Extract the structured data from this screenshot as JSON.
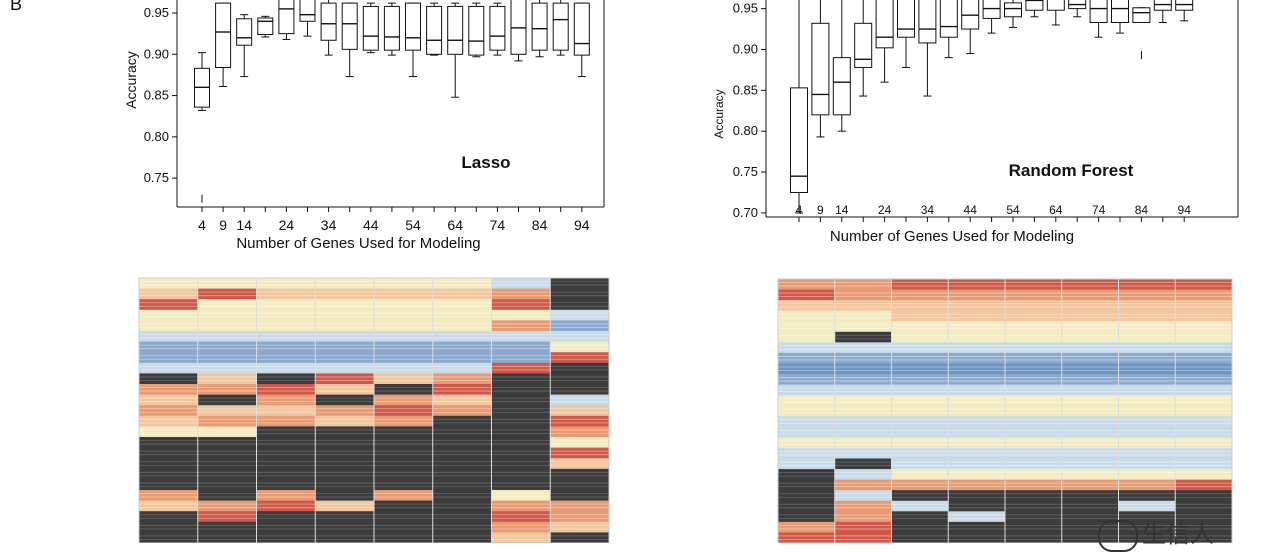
{
  "panel_label": "B",
  "watermark_text": "生信人",
  "chart_data": [
    {
      "type": "box",
      "annotation": "Lasso",
      "xlabel": "Number of Genes Used for Modeling",
      "ylabel": "Accuracy",
      "ylim": [
        0.715,
        0.99
      ],
      "yticks": [
        0.75,
        0.8,
        0.85,
        0.9,
        0.95
      ],
      "x_tick_labels": [
        "4",
        "9",
        "14",
        "24",
        "34",
        "44",
        "54",
        "64",
        "74",
        "84",
        "94"
      ],
      "categories": [
        "4",
        "9",
        "14",
        "19",
        "24",
        "29",
        "34",
        "39",
        "44",
        "49",
        "54",
        "59",
        "64",
        "69",
        "74",
        "79",
        "84",
        "89",
        "94"
      ],
      "boxes": [
        {
          "x": "4",
          "whislo": 0.832,
          "q1": 0.836,
          "med": 0.86,
          "q3": 0.883,
          "whishi": 0.902,
          "outliers": [
            0.725
          ]
        },
        {
          "x": "9",
          "whislo": 0.861,
          "q1": 0.884,
          "med": 0.927,
          "q3": 0.962,
          "whishi": 0.962,
          "outliers": []
        },
        {
          "x": "14",
          "whislo": 0.873,
          "q1": 0.911,
          "med": 0.92,
          "q3": 0.943,
          "whishi": 0.948,
          "outliers": []
        },
        {
          "x": "19",
          "whislo": 0.921,
          "q1": 0.924,
          "med": 0.94,
          "q3": 0.944,
          "whishi": 0.946,
          "outliers": []
        },
        {
          "x": "24",
          "whislo": 0.918,
          "q1": 0.925,
          "med": 0.955,
          "q3": 0.985,
          "whishi": 0.985,
          "outliers": []
        },
        {
          "x": "29",
          "whislo": 0.922,
          "q1": 0.94,
          "med": 0.948,
          "q3": 0.985,
          "whishi": 0.985,
          "outliers": []
        },
        {
          "x": "34",
          "whislo": 0.899,
          "q1": 0.917,
          "med": 0.937,
          "q3": 0.962,
          "whishi": 0.985,
          "outliers": []
        },
        {
          "x": "39",
          "whislo": 0.873,
          "q1": 0.906,
          "med": 0.937,
          "q3": 0.962,
          "whishi": 0.962,
          "outliers": []
        },
        {
          "x": "44",
          "whislo": 0.902,
          "q1": 0.905,
          "med": 0.922,
          "q3": 0.958,
          "whishi": 0.962,
          "outliers": []
        },
        {
          "x": "49",
          "whislo": 0.899,
          "q1": 0.905,
          "med": 0.921,
          "q3": 0.958,
          "whishi": 0.962,
          "outliers": []
        },
        {
          "x": "54",
          "whislo": 0.873,
          "q1": 0.905,
          "med": 0.92,
          "q3": 0.962,
          "whishi": 0.962,
          "outliers": []
        },
        {
          "x": "59",
          "whislo": 0.899,
          "q1": 0.9,
          "med": 0.917,
          "q3": 0.958,
          "whishi": 0.962,
          "outliers": []
        },
        {
          "x": "64",
          "whislo": 0.848,
          "q1": 0.9,
          "med": 0.917,
          "q3": 0.958,
          "whishi": 0.962,
          "outliers": []
        },
        {
          "x": "69",
          "whislo": 0.897,
          "q1": 0.899,
          "med": 0.916,
          "q3": 0.958,
          "whishi": 0.962,
          "outliers": []
        },
        {
          "x": "74",
          "whislo": 0.899,
          "q1": 0.905,
          "med": 0.922,
          "q3": 0.958,
          "whishi": 0.962,
          "outliers": []
        },
        {
          "x": "79",
          "whislo": 0.892,
          "q1": 0.9,
          "med": 0.932,
          "q3": 0.985,
          "whishi": 0.985,
          "outliers": []
        },
        {
          "x": "84",
          "whislo": 0.897,
          "q1": 0.905,
          "med": 0.931,
          "q3": 0.962,
          "whishi": 0.985,
          "outliers": []
        },
        {
          "x": "89",
          "whislo": 0.899,
          "q1": 0.905,
          "med": 0.942,
          "q3": 0.962,
          "whishi": 0.985,
          "outliers": []
        },
        {
          "x": "94",
          "whislo": 0.873,
          "q1": 0.899,
          "med": 0.913,
          "q3": 0.962,
          "whishi": 0.962,
          "outliers": []
        }
      ]
    },
    {
      "type": "box",
      "annotation": "Random Forest",
      "xlabel": "Number of Genes Used for Modeling",
      "ylabel": "Accuracy",
      "ylim": [
        0.695,
        0.985
      ],
      "yticks": [
        0.7,
        0.75,
        0.8,
        0.85,
        0.9,
        0.95
      ],
      "x_tick_labels": [
        "4",
        "9",
        "14",
        "24",
        "34",
        "44",
        "54",
        "64",
        "74",
        "84",
        "94"
      ],
      "categories": [
        "4",
        "9",
        "14",
        "19",
        "24",
        "29",
        "34",
        "39",
        "44",
        "49",
        "54",
        "59",
        "64",
        "69",
        "74",
        "79",
        "84",
        "89",
        "94"
      ],
      "boxes": [
        {
          "x": "4",
          "whislo": 0.7,
          "q1": 0.725,
          "med": 0.745,
          "q3": 0.853,
          "whishi": 0.985,
          "outliers": []
        },
        {
          "x": "9",
          "whislo": 0.793,
          "q1": 0.82,
          "med": 0.845,
          "q3": 0.932,
          "whishi": 0.985,
          "outliers": []
        },
        {
          "x": "14",
          "whislo": 0.8,
          "q1": 0.82,
          "med": 0.86,
          "q3": 0.89,
          "whishi": 0.985,
          "outliers": []
        },
        {
          "x": "19",
          "whislo": 0.843,
          "q1": 0.878,
          "med": 0.888,
          "q3": 0.932,
          "whishi": 0.985,
          "outliers": []
        },
        {
          "x": "24",
          "whislo": 0.86,
          "q1": 0.902,
          "med": 0.915,
          "q3": 0.975,
          "whishi": 0.985,
          "outliers": []
        },
        {
          "x": "29",
          "whislo": 0.878,
          "q1": 0.915,
          "med": 0.925,
          "q3": 0.975,
          "whishi": 0.985,
          "outliers": []
        },
        {
          "x": "34",
          "whislo": 0.843,
          "q1": 0.908,
          "med": 0.925,
          "q3": 0.975,
          "whishi": 0.985,
          "outliers": []
        },
        {
          "x": "39",
          "whislo": 0.89,
          "q1": 0.915,
          "med": 0.928,
          "q3": 0.97,
          "whishi": 0.985,
          "outliers": []
        },
        {
          "x": "44",
          "whislo": 0.895,
          "q1": 0.925,
          "med": 0.942,
          "q3": 0.967,
          "whishi": 0.985,
          "outliers": []
        },
        {
          "x": "49",
          "whislo": 0.92,
          "q1": 0.938,
          "med": 0.95,
          "q3": 0.967,
          "whishi": 0.985,
          "outliers": []
        },
        {
          "x": "54",
          "whislo": 0.927,
          "q1": 0.94,
          "med": 0.95,
          "q3": 0.957,
          "whishi": 0.962,
          "outliers": []
        },
        {
          "x": "59",
          "whislo": 0.94,
          "q1": 0.948,
          "med": 0.96,
          "q3": 0.977,
          "whishi": 0.985,
          "outliers": []
        },
        {
          "x": "64",
          "whislo": 0.93,
          "q1": 0.948,
          "med": 0.962,
          "q3": 0.977,
          "whishi": 0.985,
          "outliers": []
        },
        {
          "x": "69",
          "whislo": 0.94,
          "q1": 0.95,
          "med": 0.955,
          "q3": 0.965,
          "whishi": 0.985,
          "outliers": []
        },
        {
          "x": "74",
          "whislo": 0.915,
          "q1": 0.933,
          "med": 0.95,
          "q3": 0.98,
          "whishi": 0.985,
          "outliers": []
        },
        {
          "x": "79",
          "whislo": 0.92,
          "q1": 0.933,
          "med": 0.95,
          "q3": 0.98,
          "whishi": 0.985,
          "outliers": []
        },
        {
          "x": "84",
          "whislo": 0.933,
          "q1": 0.933,
          "med": 0.945,
          "q3": 0.951,
          "whishi": 0.951,
          "outliers": [
            0.893
          ]
        },
        {
          "x": "89",
          "whislo": 0.933,
          "q1": 0.948,
          "med": 0.955,
          "q3": 0.967,
          "whishi": 0.985,
          "outliers": []
        },
        {
          "x": "94",
          "whislo": 0.935,
          "q1": 0.948,
          "med": 0.955,
          "q3": 0.967,
          "whishi": 0.985,
          "outliers": []
        }
      ]
    },
    {
      "type": "heatmap",
      "columns": 8,
      "band_colors": {
        "red": "#d0584a",
        "orange": "#e89a73",
        "peach": "#f2c7a0",
        "cream": "#f3ecc2",
        "lightblue": "#c9dbe8",
        "blue": "#8aa9cd",
        "midblue": "#6f93c2",
        "dark": "#3c3c3c"
      },
      "rows_per_column": [
        [
          "cream",
          "peach",
          "red",
          "cream",
          "cream",
          "lightblue",
          "blue",
          "blue",
          "lightblue",
          "dark",
          "orange",
          "peach",
          "orange",
          "peach",
          "cream",
          "dark",
          "dark",
          "dark",
          "dark",
          "dark",
          "orange",
          "peach",
          "dark",
          "dark",
          "dark"
        ],
        [
          "cream",
          "red",
          "cream",
          "cream",
          "cream",
          "lightblue",
          "blue",
          "blue",
          "lightblue",
          "peach",
          "orange",
          "dark",
          "peach",
          "orange",
          "cream",
          "dark",
          "dark",
          "dark",
          "dark",
          "dark",
          "dark",
          "orange",
          "red",
          "dark",
          "dark"
        ],
        [
          "cream",
          "peach",
          "cream",
          "cream",
          "cream",
          "lightblue",
          "blue",
          "blue",
          "lightblue",
          "dark",
          "red",
          "orange",
          "peach",
          "orange",
          "dark",
          "dark",
          "dark",
          "dark",
          "dark",
          "dark",
          "orange",
          "red",
          "dark",
          "dark",
          "dark"
        ],
        [
          "cream",
          "peach",
          "cream",
          "cream",
          "cream",
          "lightblue",
          "blue",
          "blue",
          "lightblue",
          "red",
          "peach",
          "dark",
          "orange",
          "peach",
          "dark",
          "dark",
          "dark",
          "dark",
          "dark",
          "dark",
          "dark",
          "peach",
          "dark",
          "dark",
          "dark"
        ],
        [
          "cream",
          "peach",
          "cream",
          "cream",
          "cream",
          "lightblue",
          "blue",
          "blue",
          "lightblue",
          "peach",
          "dark",
          "orange",
          "red",
          "orange",
          "dark",
          "dark",
          "dark",
          "dark",
          "dark",
          "dark",
          "orange",
          "dark",
          "dark",
          "dark",
          "dark"
        ],
        [
          "cream",
          "peach",
          "cream",
          "cream",
          "cream",
          "lightblue",
          "blue",
          "blue",
          "lightblue",
          "orange",
          "red",
          "peach",
          "orange",
          "dark",
          "dark",
          "dark",
          "dark",
          "dark",
          "dark",
          "dark",
          "dark",
          "dark",
          "dark",
          "dark",
          "dark"
        ],
        [
          "lightblue",
          "orange",
          "red",
          "cream",
          "orange",
          "lightblue",
          "blue",
          "blue",
          "red",
          "dark",
          "dark",
          "dark",
          "dark",
          "dark",
          "dark",
          "dark",
          "dark",
          "dark",
          "dark",
          "dark",
          "cream",
          "orange",
          "red",
          "orange",
          "peach"
        ],
        [
          "dark",
          "dark",
          "dark",
          "lightblue",
          "blue",
          "lightblue",
          "cream",
          "red",
          "dark",
          "dark",
          "dark",
          "lightblue",
          "peach",
          "red",
          "orange",
          "cream",
          "red",
          "peach",
          "dark",
          "dark",
          "dark",
          "orange",
          "orange",
          "peach",
          "dark"
        ]
      ]
    },
    {
      "type": "heatmap",
      "columns": 8,
      "rows_per_column": [
        [
          "orange",
          "red",
          "peach",
          "cream",
          "cream",
          "cream",
          "lightblue",
          "blue",
          "midblue",
          "blue",
          "lightblue",
          "cream",
          "cream",
          "lightblue",
          "lightblue",
          "cream",
          "lightblue",
          "lightblue",
          "dark",
          "dark",
          "dark",
          "dark",
          "dark",
          "orange",
          "red"
        ],
        [
          "orange",
          "orange",
          "peach",
          "cream",
          "cream",
          "dark",
          "lightblue",
          "blue",
          "midblue",
          "blue",
          "lightblue",
          "cream",
          "cream",
          "lightblue",
          "lightblue",
          "cream",
          "lightblue",
          "dark",
          "lightblue",
          "orange",
          "lightblue",
          "orange",
          "orange",
          "red",
          "red"
        ],
        [
          "red",
          "orange",
          "peach",
          "peach",
          "cream",
          "cream",
          "lightblue",
          "blue",
          "midblue",
          "blue",
          "lightblue",
          "cream",
          "cream",
          "lightblue",
          "lightblue",
          "cream",
          "lightblue",
          "lightblue",
          "cream",
          "orange",
          "dark",
          "lightblue",
          "dark",
          "dark",
          "dark"
        ],
        [
          "red",
          "orange",
          "peach",
          "peach",
          "cream",
          "cream",
          "lightblue",
          "blue",
          "midblue",
          "blue",
          "lightblue",
          "cream",
          "cream",
          "lightblue",
          "lightblue",
          "cream",
          "lightblue",
          "lightblue",
          "cream",
          "orange",
          "dark",
          "dark",
          "lightblue",
          "dark",
          "dark"
        ],
        [
          "red",
          "orange",
          "peach",
          "peach",
          "cream",
          "cream",
          "lightblue",
          "blue",
          "midblue",
          "blue",
          "lightblue",
          "cream",
          "cream",
          "lightblue",
          "lightblue",
          "cream",
          "lightblue",
          "lightblue",
          "cream",
          "orange",
          "dark",
          "dark",
          "dark",
          "dark",
          "dark"
        ],
        [
          "red",
          "orange",
          "peach",
          "peach",
          "cream",
          "cream",
          "lightblue",
          "blue",
          "midblue",
          "blue",
          "lightblue",
          "cream",
          "cream",
          "lightblue",
          "lightblue",
          "cream",
          "lightblue",
          "lightblue",
          "cream",
          "orange",
          "dark",
          "dark",
          "dark",
          "dark",
          "dark"
        ],
        [
          "red",
          "orange",
          "peach",
          "peach",
          "cream",
          "cream",
          "lightblue",
          "blue",
          "midblue",
          "blue",
          "lightblue",
          "cream",
          "cream",
          "lightblue",
          "lightblue",
          "cream",
          "lightblue",
          "lightblue",
          "cream",
          "orange",
          "dark",
          "lightblue",
          "dark",
          "dark",
          "dark"
        ],
        [
          "red",
          "orange",
          "peach",
          "peach",
          "cream",
          "cream",
          "lightblue",
          "blue",
          "midblue",
          "blue",
          "lightblue",
          "cream",
          "cream",
          "lightblue",
          "lightblue",
          "cream",
          "lightblue",
          "lightblue",
          "cream",
          "red",
          "dark",
          "dark",
          "dark",
          "dark",
          "dark"
        ]
      ]
    }
  ]
}
